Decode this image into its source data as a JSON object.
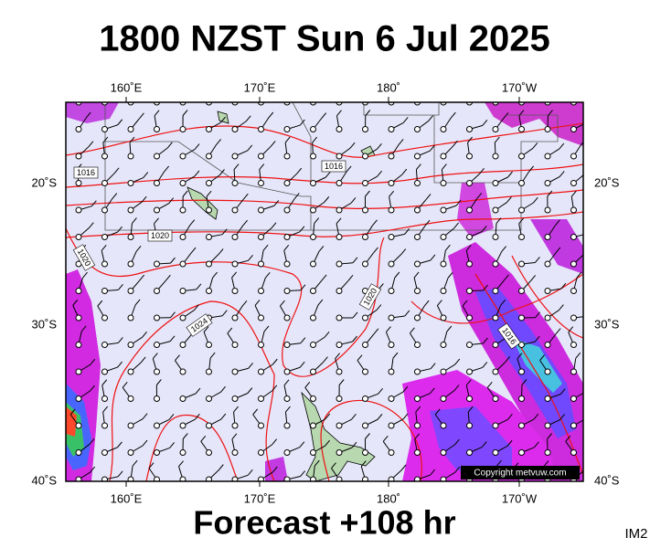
{
  "title": "1800 NZST Sun 6 Jul 2025",
  "footer": "Forecast +108 hr",
  "corner_label": "IM2",
  "copyright": "Copyright metvuw.com",
  "longitude_labels_top": [
    "160˚E",
    "170˚E",
    "180˚",
    "170˚W"
  ],
  "longitude_labels_bottom": [
    "160˚E",
    "170˚E",
    "180˚",
    "170˚W"
  ],
  "latitude_labels_left": [
    "20˚S",
    "30˚S",
    "40˚S"
  ],
  "latitude_labels_right": [
    "20˚S",
    "30˚S",
    "40˚S"
  ],
  "isobar_labels": [
    "1016",
    "1016",
    "1020",
    "1020",
    "1024",
    "1020",
    "1016"
  ]
}
